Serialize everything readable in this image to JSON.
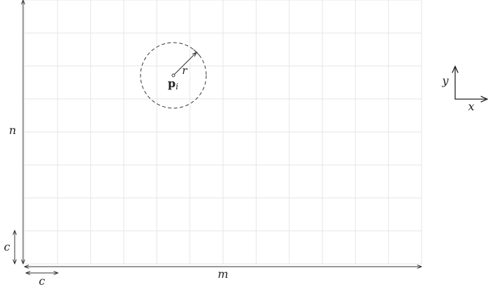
{
  "grid": {
    "columns": 12,
    "rows": 8,
    "grid_color": "#e6e6e6",
    "line_color": "#333333"
  },
  "labels": {
    "n": "n",
    "m": "m",
    "c_vertical": "c",
    "c_horizontal": "c",
    "r": "r",
    "point_base": "p",
    "point_sub": "i"
  },
  "axes_icon": {
    "x": "x",
    "y": "y"
  },
  "circle": {
    "style": "dashed"
  }
}
